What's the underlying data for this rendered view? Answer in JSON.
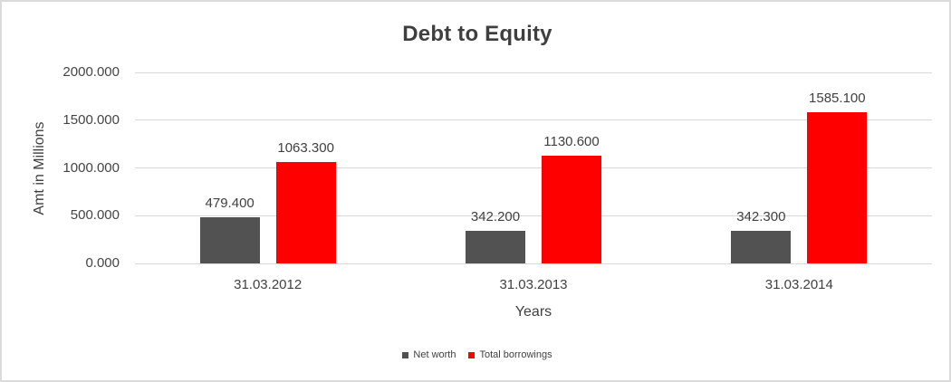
{
  "chart": {
    "title": "Debt to Equity",
    "xlabel": "Years",
    "ylabel": "Amt in Millions"
  },
  "chart_data": {
    "type": "bar",
    "title": "Debt to Equity",
    "xlabel": "Years",
    "ylabel": "Amt in Millions",
    "categories": [
      "31.03.2012",
      "31.03.2013",
      "31.03.2014"
    ],
    "series": [
      {
        "name": "Net worth",
        "color": "#525252",
        "values": [
          479.4,
          342.2,
          342.3
        ],
        "labels": [
          "479.400",
          "342.200",
          "342.300"
        ]
      },
      {
        "name": "Total borrowings",
        "color": "#ff0000",
        "values": [
          1063.3,
          1130.6,
          1585.1
        ],
        "labels": [
          "1063.300",
          "1130.600",
          "1585.100"
        ]
      }
    ],
    "ylim": [
      0,
      2000
    ],
    "ytick_step": 500,
    "ytick_labels": [
      "0.000",
      "500.000",
      "1000.000",
      "1500.000",
      "2000.000"
    ],
    "grid": true,
    "legend_position": "bottom",
    "colors": {
      "grid": "#d9d9d9",
      "text": "#404040",
      "background": "#ffffff",
      "border": "#dbdbdb"
    }
  }
}
